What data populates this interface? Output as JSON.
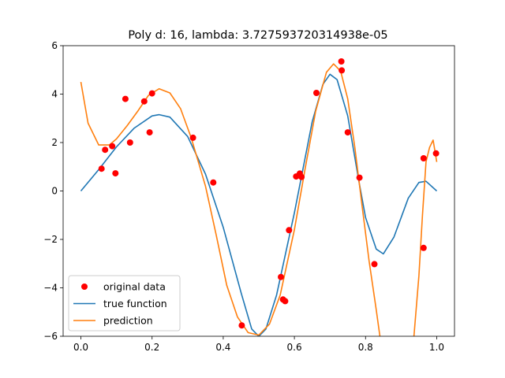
{
  "chart_data": {
    "type": "line",
    "title": "Poly d: 16, lambda: 3.727593720314938e-05",
    "xlabel": "",
    "ylabel": "",
    "xlim": [
      -0.05,
      1.05
    ],
    "ylim": [
      -6,
      6
    ],
    "grid": false,
    "legend_position": "lower-left",
    "xticks": [
      "0.0",
      "0.2",
      "0.4",
      "0.6",
      "0.8",
      "1.0"
    ],
    "xtick_values": [
      0.0,
      0.2,
      0.4,
      0.6,
      0.8,
      1.0
    ],
    "yticks": [
      "−6",
      "−4",
      "−2",
      "0",
      "2",
      "4",
      "6"
    ],
    "ytick_values": [
      -6,
      -4,
      -2,
      0,
      2,
      4,
      6
    ],
    "series": [
      {
        "name": "original data",
        "kind": "scatter",
        "color": "#ff0000",
        "points": [
          [
            0.058,
            0.92
          ],
          [
            0.068,
            1.7
          ],
          [
            0.088,
            1.85
          ],
          [
            0.097,
            0.73
          ],
          [
            0.125,
            3.8
          ],
          [
            0.138,
            2.0
          ],
          [
            0.178,
            3.7
          ],
          [
            0.193,
            2.42
          ],
          [
            0.2,
            4.03
          ],
          [
            0.315,
            2.2
          ],
          [
            0.372,
            0.35
          ],
          [
            0.452,
            -5.55
          ],
          [
            0.562,
            -3.55
          ],
          [
            0.568,
            -4.48
          ],
          [
            0.574,
            -4.55
          ],
          [
            0.585,
            -1.62
          ],
          [
            0.605,
            0.6
          ],
          [
            0.615,
            0.72
          ],
          [
            0.62,
            0.58
          ],
          [
            0.662,
            4.05
          ],
          [
            0.732,
            5.35
          ],
          [
            0.733,
            4.98
          ],
          [
            0.75,
            2.42
          ],
          [
            0.783,
            0.55
          ],
          [
            0.825,
            -3.02
          ],
          [
            0.963,
            1.35
          ],
          [
            0.963,
            -2.35
          ],
          [
            0.998,
            1.55
          ]
        ]
      },
      {
        "name": "true function",
        "kind": "line",
        "color": "#1f77b4",
        "points": [
          [
            0.0,
            0.0
          ],
          [
            0.05,
            0.88
          ],
          [
            0.1,
            1.82
          ],
          [
            0.15,
            2.6
          ],
          [
            0.2,
            3.1
          ],
          [
            0.22,
            3.15
          ],
          [
            0.25,
            3.05
          ],
          [
            0.3,
            2.25
          ],
          [
            0.35,
            0.7
          ],
          [
            0.4,
            -1.5
          ],
          [
            0.45,
            -4.2
          ],
          [
            0.48,
            -5.7
          ],
          [
            0.5,
            -6.0
          ],
          [
            0.52,
            -5.7
          ],
          [
            0.55,
            -4.3
          ],
          [
            0.6,
            -0.9
          ],
          [
            0.65,
            2.85
          ],
          [
            0.68,
            4.4
          ],
          [
            0.7,
            4.82
          ],
          [
            0.72,
            4.6
          ],
          [
            0.75,
            3.1
          ],
          [
            0.78,
            0.5
          ],
          [
            0.8,
            -1.1
          ],
          [
            0.83,
            -2.4
          ],
          [
            0.85,
            -2.6
          ],
          [
            0.88,
            -1.9
          ],
          [
            0.92,
            -0.3
          ],
          [
            0.95,
            0.35
          ],
          [
            0.97,
            0.4
          ],
          [
            1.0,
            0.0
          ]
        ]
      },
      {
        "name": "prediction",
        "kind": "line",
        "color": "#ff7f0e",
        "points": [
          [
            0.0,
            4.5
          ],
          [
            0.02,
            2.8
          ],
          [
            0.05,
            1.9
          ],
          [
            0.08,
            1.9
          ],
          [
            0.1,
            2.15
          ],
          [
            0.13,
            2.7
          ],
          [
            0.16,
            3.3
          ],
          [
            0.19,
            3.95
          ],
          [
            0.22,
            4.22
          ],
          [
            0.25,
            4.05
          ],
          [
            0.28,
            3.4
          ],
          [
            0.31,
            2.2
          ],
          [
            0.35,
            0.2
          ],
          [
            0.38,
            -1.8
          ],
          [
            0.41,
            -3.9
          ],
          [
            0.44,
            -5.2
          ],
          [
            0.47,
            -5.85
          ],
          [
            0.5,
            -5.95
          ],
          [
            0.53,
            -5.5
          ],
          [
            0.56,
            -4.3
          ],
          [
            0.6,
            -1.6
          ],
          [
            0.63,
            0.9
          ],
          [
            0.66,
            3.3
          ],
          [
            0.69,
            4.9
          ],
          [
            0.71,
            5.25
          ],
          [
            0.73,
            4.95
          ],
          [
            0.75,
            3.8
          ],
          [
            0.77,
            1.8
          ],
          [
            0.79,
            -0.6
          ],
          [
            0.81,
            -2.9
          ],
          [
            0.83,
            -4.9
          ],
          [
            0.845,
            -6.5
          ],
          [
            0.9,
            -7.5
          ],
          [
            0.935,
            -6.2
          ],
          [
            0.95,
            -3.5
          ],
          [
            0.96,
            -1.0
          ],
          [
            0.97,
            1.2
          ],
          [
            0.98,
            1.8
          ],
          [
            0.99,
            2.1
          ],
          [
            1.0,
            1.2
          ]
        ]
      }
    ]
  }
}
